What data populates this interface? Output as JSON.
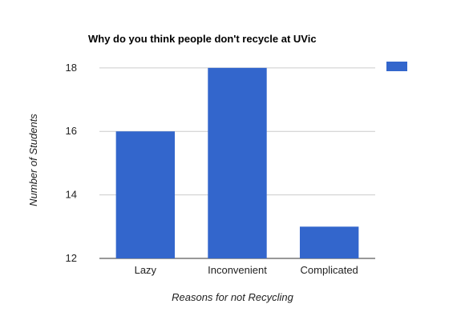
{
  "chart_data": {
    "type": "bar",
    "title": "Why do you think people don't recycle at UVic",
    "xlabel": "Reasons for not Recycling",
    "ylabel": "Number of Students",
    "categories": [
      "Lazy",
      "Inconvenient",
      "Complicated"
    ],
    "values": [
      16,
      18,
      13
    ],
    "ylim": [
      12,
      18.5
    ],
    "yticks": [
      12,
      14,
      16,
      18
    ],
    "grid": true,
    "legend": "top-right",
    "bar_color": "#3366cc",
    "grid_color": "#cccccc"
  }
}
